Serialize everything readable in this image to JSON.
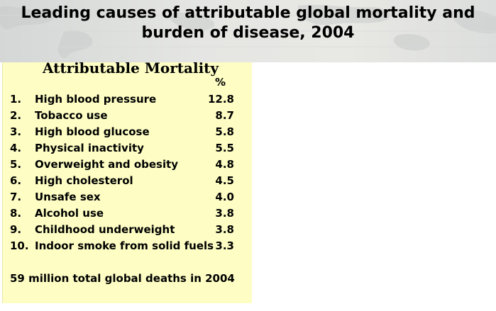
{
  "header": {
    "title_line1": "Leading causes of attributable global mortality and",
    "title_line2": "burden of disease, 2004"
  },
  "panel": {
    "heading": "Attributable Mortality",
    "percent_header": "%",
    "rows": [
      {
        "rank": "1.",
        "cause": "High blood pressure",
        "percent": "12.8"
      },
      {
        "rank": "2.",
        "cause": "Tobacco use",
        "percent": "8.7"
      },
      {
        "rank": "3.",
        "cause": "High blood glucose",
        "percent": "5.8"
      },
      {
        "rank": "4.",
        "cause": "Physical inactivity",
        "percent": "5.5"
      },
      {
        "rank": "5.",
        "cause": "Overweight and obesity",
        "percent": "4.8"
      },
      {
        "rank": "6.",
        "cause": "High cholesterol",
        "percent": "4.5"
      },
      {
        "rank": "7.",
        "cause": "Unsafe sex",
        "percent": "4.0"
      },
      {
        "rank": "8.",
        "cause": "Alcohol use",
        "percent": "3.8"
      },
      {
        "rank": "9.",
        "cause": "Childhood underweight",
        "percent": "3.8"
      },
      {
        "rank": "10.",
        "cause": "Indoor smoke from solid fuels",
        "percent": "3.3"
      }
    ],
    "footer_note": "59 million total global deaths in 2004"
  },
  "colors": {
    "panel_background": "#fdfdc4",
    "header_background": "#e5e6e3",
    "text": "#000000"
  }
}
